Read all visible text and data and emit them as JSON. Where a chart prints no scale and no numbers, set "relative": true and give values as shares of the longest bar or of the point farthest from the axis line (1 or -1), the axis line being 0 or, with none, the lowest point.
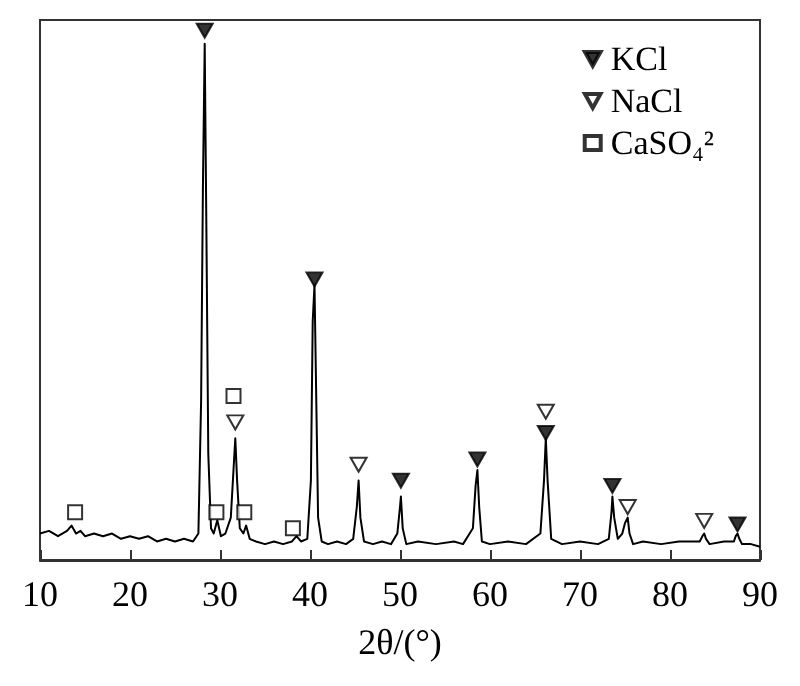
{
  "chart_data": {
    "type": "line",
    "relative": true,
    "xlabel": "2θ/(°)",
    "xlim": [
      10,
      90
    ],
    "xticks": [
      10,
      20,
      30,
      40,
      50,
      60,
      70,
      80,
      90
    ],
    "legend": "top right",
    "grid": false,
    "series": [
      {
        "type": "line",
        "color": "#000000",
        "marker": "none",
        "x": [
          10,
          11,
          12,
          13,
          13.5,
          14,
          14.5,
          15,
          16,
          17,
          18,
          19,
          20,
          21,
          22,
          23,
          24,
          25,
          26,
          27,
          27.6,
          27.9,
          28.1,
          28.3,
          28.5,
          28.7,
          29,
          29.3,
          29.7,
          30.1,
          30.6,
          31.2,
          31.5,
          31.7,
          31.9,
          32.2,
          32.6,
          32.9,
          33.3,
          34,
          35,
          36,
          37,
          38,
          38.5,
          39,
          39.7,
          40.1,
          40.3,
          40.5,
          40.7,
          40.9,
          41.3,
          42,
          43,
          44,
          44.8,
          45.2,
          45.4,
          45.6,
          46,
          47,
          48,
          49,
          49.7,
          50,
          50.1,
          50.3,
          50.7,
          52,
          54,
          56,
          57,
          58.1,
          58.4,
          58.6,
          58.8,
          59.1,
          60,
          62,
          64,
          65.6,
          66,
          66.2,
          66.4,
          66.8,
          68,
          70,
          72,
          73.2,
          73.5,
          73.6,
          73.8,
          74.2,
          74.7,
          75,
          75.3,
          75.5,
          75.9,
          77,
          79,
          81,
          83.3,
          83.6,
          83.8,
          84,
          84.4,
          86,
          87.1,
          87.3,
          87.5,
          87.7,
          88,
          89,
          90
        ],
        "values": [
          0.05,
          0.055,
          0.045,
          0.055,
          0.065,
          0.05,
          0.055,
          0.045,
          0.05,
          0.045,
          0.05,
          0.04,
          0.045,
          0.04,
          0.045,
          0.035,
          0.04,
          0.035,
          0.04,
          0.035,
          0.05,
          0.3,
          0.7,
          0.975,
          0.6,
          0.2,
          0.06,
          0.05,
          0.075,
          0.045,
          0.05,
          0.08,
          0.17,
          0.23,
          0.15,
          0.06,
          0.05,
          0.065,
          0.04,
          0.035,
          0.03,
          0.035,
          0.03,
          0.035,
          0.045,
          0.035,
          0.04,
          0.15,
          0.45,
          0.52,
          0.3,
          0.08,
          0.035,
          0.03,
          0.035,
          0.03,
          0.04,
          0.1,
          0.15,
          0.08,
          0.035,
          0.03,
          0.035,
          0.03,
          0.05,
          0.1,
          0.12,
          0.06,
          0.03,
          0.035,
          0.03,
          0.035,
          0.03,
          0.06,
          0.14,
          0.17,
          0.1,
          0.035,
          0.03,
          0.035,
          0.03,
          0.05,
          0.15,
          0.23,
          0.15,
          0.04,
          0.03,
          0.035,
          0.03,
          0.04,
          0.09,
          0.12,
          0.08,
          0.04,
          0.05,
          0.07,
          0.08,
          0.05,
          0.03,
          0.035,
          0.03,
          0.035,
          0.035,
          0.045,
          0.05,
          0.04,
          0.03,
          0.035,
          0.035,
          0.045,
          0.05,
          0.04,
          0.03,
          0.03,
          0.025
        ]
      },
      {
        "name": "KCl",
        "type": "scatter",
        "color": "#000000",
        "marker": "triangle",
        "x": [
          28.3,
          40.5,
          50.1,
          58.6,
          66.2,
          73.6,
          87.5
        ],
        "values": [
          1.0,
          0.53,
          0.15,
          0.19,
          0.24,
          0.14,
          0.067
        ]
      },
      {
        "name": "NaCl",
        "type": "scatter",
        "color": "#000000",
        "marker": "triangle",
        "x": [
          31.7,
          45.4,
          66.2,
          75.3,
          83.8
        ],
        "values": [
          0.26,
          0.18,
          0.28,
          0.1,
          0.074
        ]
      },
      {
        "name": "CaSO₄²",
        "type": "scatter",
        "color": "#000000",
        "marker": "square",
        "x": [
          13.9,
          29.6,
          31.5,
          32.7,
          38.1
        ],
        "values": [
          0.09,
          0.09,
          0.31,
          0.09,
          0.06
        ]
      }
    ]
  }
}
